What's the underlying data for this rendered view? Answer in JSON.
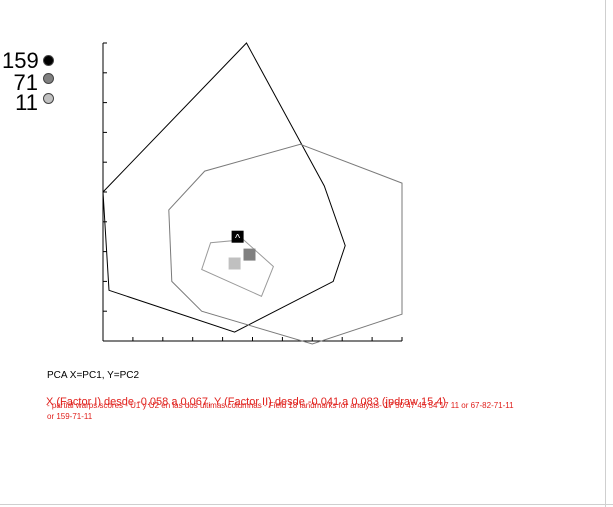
{
  "chart_data": {
    "type": "scatter",
    "title": "",
    "xlabel": "",
    "ylabel": "",
    "xlim": [
      0,
      10
    ],
    "ylim": [
      0,
      10
    ],
    "grid": false,
    "legend_position": "top-left",
    "series": [
      {
        "name": "159",
        "color": "#000000",
        "centroid": [
          4.5,
          3.5
        ],
        "hull": [
          [
            4.8,
            10.0
          ],
          [
            7.4,
            5.2
          ],
          [
            8.1,
            3.2
          ],
          [
            7.7,
            2.0
          ],
          [
            4.4,
            0.3
          ],
          [
            0.2,
            1.7
          ],
          [
            0.0,
            5.0
          ]
        ]
      },
      {
        "name": "71",
        "color": "#808080",
        "centroid": [
          4.9,
          2.9
        ],
        "hull": [
          [
            6.6,
            6.6
          ],
          [
            10.0,
            5.3
          ],
          [
            10.0,
            0.9
          ],
          [
            7.0,
            -0.1
          ],
          [
            3.3,
            1.0
          ],
          [
            2.3,
            2.0
          ],
          [
            2.2,
            4.4
          ],
          [
            3.4,
            5.7
          ]
        ]
      },
      {
        "name": "11",
        "color": "#c0c0c0",
        "centroid": [
          4.4,
          2.6
        ],
        "hull": [
          [
            4.7,
            3.4
          ],
          [
            5.7,
            2.5
          ],
          [
            5.3,
            1.5
          ],
          [
            3.3,
            2.4
          ],
          [
            3.6,
            3.3
          ]
        ]
      }
    ],
    "marker_159_label": "^"
  },
  "caption": "PCA X=PC1, Y=PC2",
  "red_overlay": "X (Factor I) desde -0.058 a 0.067, Y (Factor II) desde -0.041 a 0.083 (jpdraw 15.4)",
  "red_note": "- partial warps scores - U1 y U2 en las dos ultimas columnas - Field 18 landmarks for analysis- 17 50 47 45 54 17 11 or 67-82-71-11 or 159-71-11"
}
